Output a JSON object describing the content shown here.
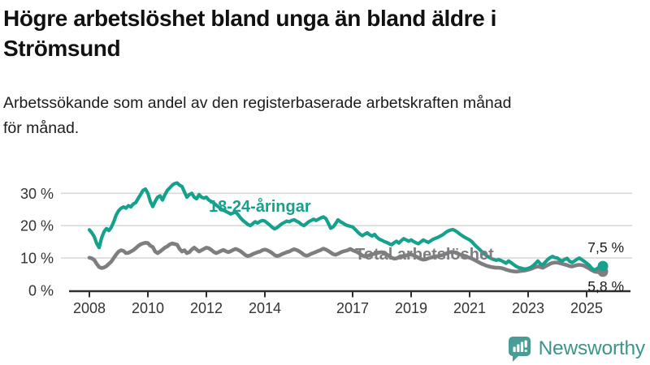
{
  "header": {
    "title_lines": [
      "Högre arbetslöshet bland unga än bland äldre i",
      "Strömsund"
    ],
    "subtitle_lines": [
      "Arbetssökande som andel av den registerbaserade arbetskraften månad",
      "för månad."
    ]
  },
  "colors": {
    "accent_teal": "#16a18c",
    "accent_gray": "#7e7e80",
    "grid": "#d9d9d9",
    "axis": "#2e2e2e",
    "tick_text": "#333333",
    "brand_teal": "#3e938e",
    "brand_icon": "#4a9d97"
  },
  "chart_data": {
    "type": "line",
    "x_unit": "month",
    "x_start": "2008-01",
    "x_end": "2025-07",
    "ylim": [
      0,
      36
    ],
    "grid": "horizontal",
    "legend_position": "inline-labels",
    "yticks": [
      {
        "value": 0,
        "label": "0 %"
      },
      {
        "value": 10,
        "label": "10 %"
      },
      {
        "value": 20,
        "label": "20 %"
      },
      {
        "value": 30,
        "label": "30 %"
      }
    ],
    "xticks": [
      {
        "year": 2008,
        "label": "2008"
      },
      {
        "year": 2010,
        "label": "2010"
      },
      {
        "year": 2012,
        "label": "2012"
      },
      {
        "year": 2014,
        "label": "2014"
      },
      {
        "year": 2017,
        "label": "2017"
      },
      {
        "year": 2019,
        "label": "2019"
      },
      {
        "year": 2021,
        "label": "2021"
      },
      {
        "year": 2023,
        "label": "2023"
      },
      {
        "year": 2025,
        "label": "2025"
      }
    ],
    "series": [
      {
        "name": "18-24-åringar",
        "color": "#16a18c",
        "end_label": "7,5 %",
        "end_value": 7.5,
        "values": [
          18.7,
          17.8,
          16.6,
          14.5,
          13.2,
          16.2,
          18.1,
          19.1,
          18.5,
          19.5,
          21.2,
          23.3,
          24.6,
          25.4,
          25.8,
          25.4,
          26.2,
          25.8,
          26.7,
          27.1,
          28.4,
          29.6,
          30.9,
          31.3,
          30.0,
          27.5,
          25.9,
          27.5,
          28.8,
          29.2,
          27.9,
          29.6,
          30.9,
          31.7,
          32.5,
          33.0,
          33.2,
          32.5,
          32.1,
          30.4,
          28.8,
          29.6,
          30.0,
          28.8,
          28.3,
          29.6,
          28.8,
          28.5,
          28.8,
          27.9,
          27.5,
          27.0,
          26.4,
          25.8,
          25.2,
          24.8,
          24.4,
          24.0,
          23.6,
          23.9,
          24.2,
          23.4,
          22.4,
          21.6,
          21.0,
          20.4,
          20.0,
          20.6,
          21.2,
          20.8,
          21.3,
          21.6,
          21.4,
          20.8,
          20.2,
          19.5,
          19.0,
          19.4,
          20.0,
          20.6,
          21.0,
          21.4,
          21.2,
          21.6,
          21.8,
          21.4,
          21.0,
          20.4,
          20.0,
          20.6,
          21.2,
          21.6,
          22.0,
          21.6,
          22.0,
          22.4,
          22.7,
          22.2,
          20.8,
          19.2,
          19.6,
          20.6,
          21.8,
          21.2,
          20.8,
          20.3,
          20.0,
          19.8,
          19.6,
          18.9,
          18.1,
          17.4,
          16.9,
          17.4,
          17.8,
          17.2,
          16.8,
          17.3,
          16.4,
          15.8,
          15.5,
          15.1,
          14.8,
          14.4,
          14.1,
          14.7,
          15.2,
          14.6,
          15.4,
          16.0,
          15.6,
          15.2,
          15.6,
          15.1,
          14.7,
          14.4,
          15.0,
          15.6,
          15.2,
          14.8,
          15.3,
          15.8,
          16.1,
          16.4,
          16.8,
          17.2,
          17.8,
          18.3,
          18.6,
          18.8,
          18.5,
          18.0,
          17.4,
          16.9,
          16.4,
          16.0,
          15.6,
          15.0,
          14.1,
          13.4,
          12.7,
          12.0,
          11.3,
          10.7,
          10.2,
          9.8,
          9.5,
          9.3,
          9.5,
          9.2,
          8.8,
          8.4,
          9.1,
          8.6,
          8.0,
          7.5,
          7.1,
          6.9,
          6.7,
          6.6,
          6.8,
          7.1,
          7.6,
          8.3,
          9.1,
          8.2,
          7.9,
          8.7,
          9.5,
          10.1,
          10.5,
          10.1,
          10.0,
          9.4,
          9.1,
          9.6,
          9.9,
          9.0,
          8.6,
          9.1,
          9.6,
          10.0,
          9.5,
          9.0,
          8.4,
          7.8,
          6.9,
          6.3,
          6.6,
          7.1,
          7.5
        ]
      },
      {
        "name": "Total arbetslöshet",
        "color": "#7e7e80",
        "end_label": "5,8 %",
        "end_value": 5.8,
        "values": [
          10.1,
          9.9,
          9.4,
          8.2,
          7.2,
          6.9,
          7.1,
          7.5,
          8.2,
          8.9,
          10.0,
          11.1,
          12.0,
          12.4,
          12.2,
          11.5,
          11.6,
          12.0,
          12.4,
          13.0,
          13.7,
          14.2,
          14.5,
          14.7,
          14.6,
          13.8,
          13.4,
          12.0,
          11.5,
          12.0,
          12.6,
          13.2,
          13.6,
          14.2,
          14.5,
          14.3,
          14.1,
          12.8,
          12.0,
          12.4,
          11.5,
          11.8,
          12.6,
          13.2,
          12.6,
          12.0,
          12.4,
          12.8,
          13.2,
          13.0,
          12.5,
          11.9,
          11.5,
          11.8,
          12.2,
          12.5,
          12.1,
          11.8,
          12.1,
          12.5,
          12.8,
          12.5,
          12.1,
          11.5,
          10.9,
          10.6,
          10.8,
          11.2,
          11.5,
          11.8,
          12.0,
          12.4,
          12.6,
          12.4,
          12.0,
          11.5,
          10.9,
          10.6,
          10.8,
          11.2,
          11.5,
          11.8,
          12.0,
          12.4,
          12.7,
          12.5,
          12.1,
          11.6,
          11.0,
          10.7,
          10.9,
          11.3,
          11.6,
          11.9,
          12.2,
          12.5,
          12.9,
          12.6,
          12.2,
          11.7,
          11.2,
          11.0,
          11.3,
          11.7,
          12.0,
          12.2,
          12.4,
          12.8,
          12.4,
          12.1,
          11.8,
          11.3,
          10.8,
          10.5,
          10.6,
          10.9,
          11.1,
          11.3,
          11.5,
          11.7,
          11.8,
          11.5,
          11.1,
          10.6,
          10.1,
          9.8,
          9.9,
          10.2,
          10.4,
          10.6,
          10.8,
          11.0,
          11.1,
          10.8,
          10.5,
          10.1,
          9.7,
          9.5,
          9.6,
          9.9,
          10.1,
          10.3,
          10.5,
          10.6,
          10.8,
          10.9,
          11.2,
          11.6,
          11.8,
          11.9,
          11.7,
          11.4,
          11.1,
          10.8,
          10.5,
          10.3,
          10.1,
          9.8,
          9.4,
          9.0,
          8.6,
          8.2,
          7.9,
          7.6,
          7.4,
          7.2,
          7.1,
          7.0,
          7.0,
          6.9,
          6.7,
          6.4,
          6.2,
          6.0,
          5.9,
          5.8,
          5.9,
          6.0,
          6.1,
          6.2,
          6.4,
          6.6,
          6.9,
          7.2,
          7.4,
          7.2,
          7.0,
          7.4,
          7.8,
          8.2,
          8.5,
          8.6,
          8.6,
          8.4,
          8.2,
          8.0,
          7.8,
          7.5,
          7.4,
          7.6,
          7.8,
          7.9,
          7.8,
          7.6,
          7.2,
          6.8,
          6.3,
          5.9,
          5.7,
          5.7,
          5.8
        ]
      }
    ]
  },
  "footer": {
    "brand": "Newsworthy",
    "logo_icon": "bar-chart-speech-bubble-icon"
  }
}
